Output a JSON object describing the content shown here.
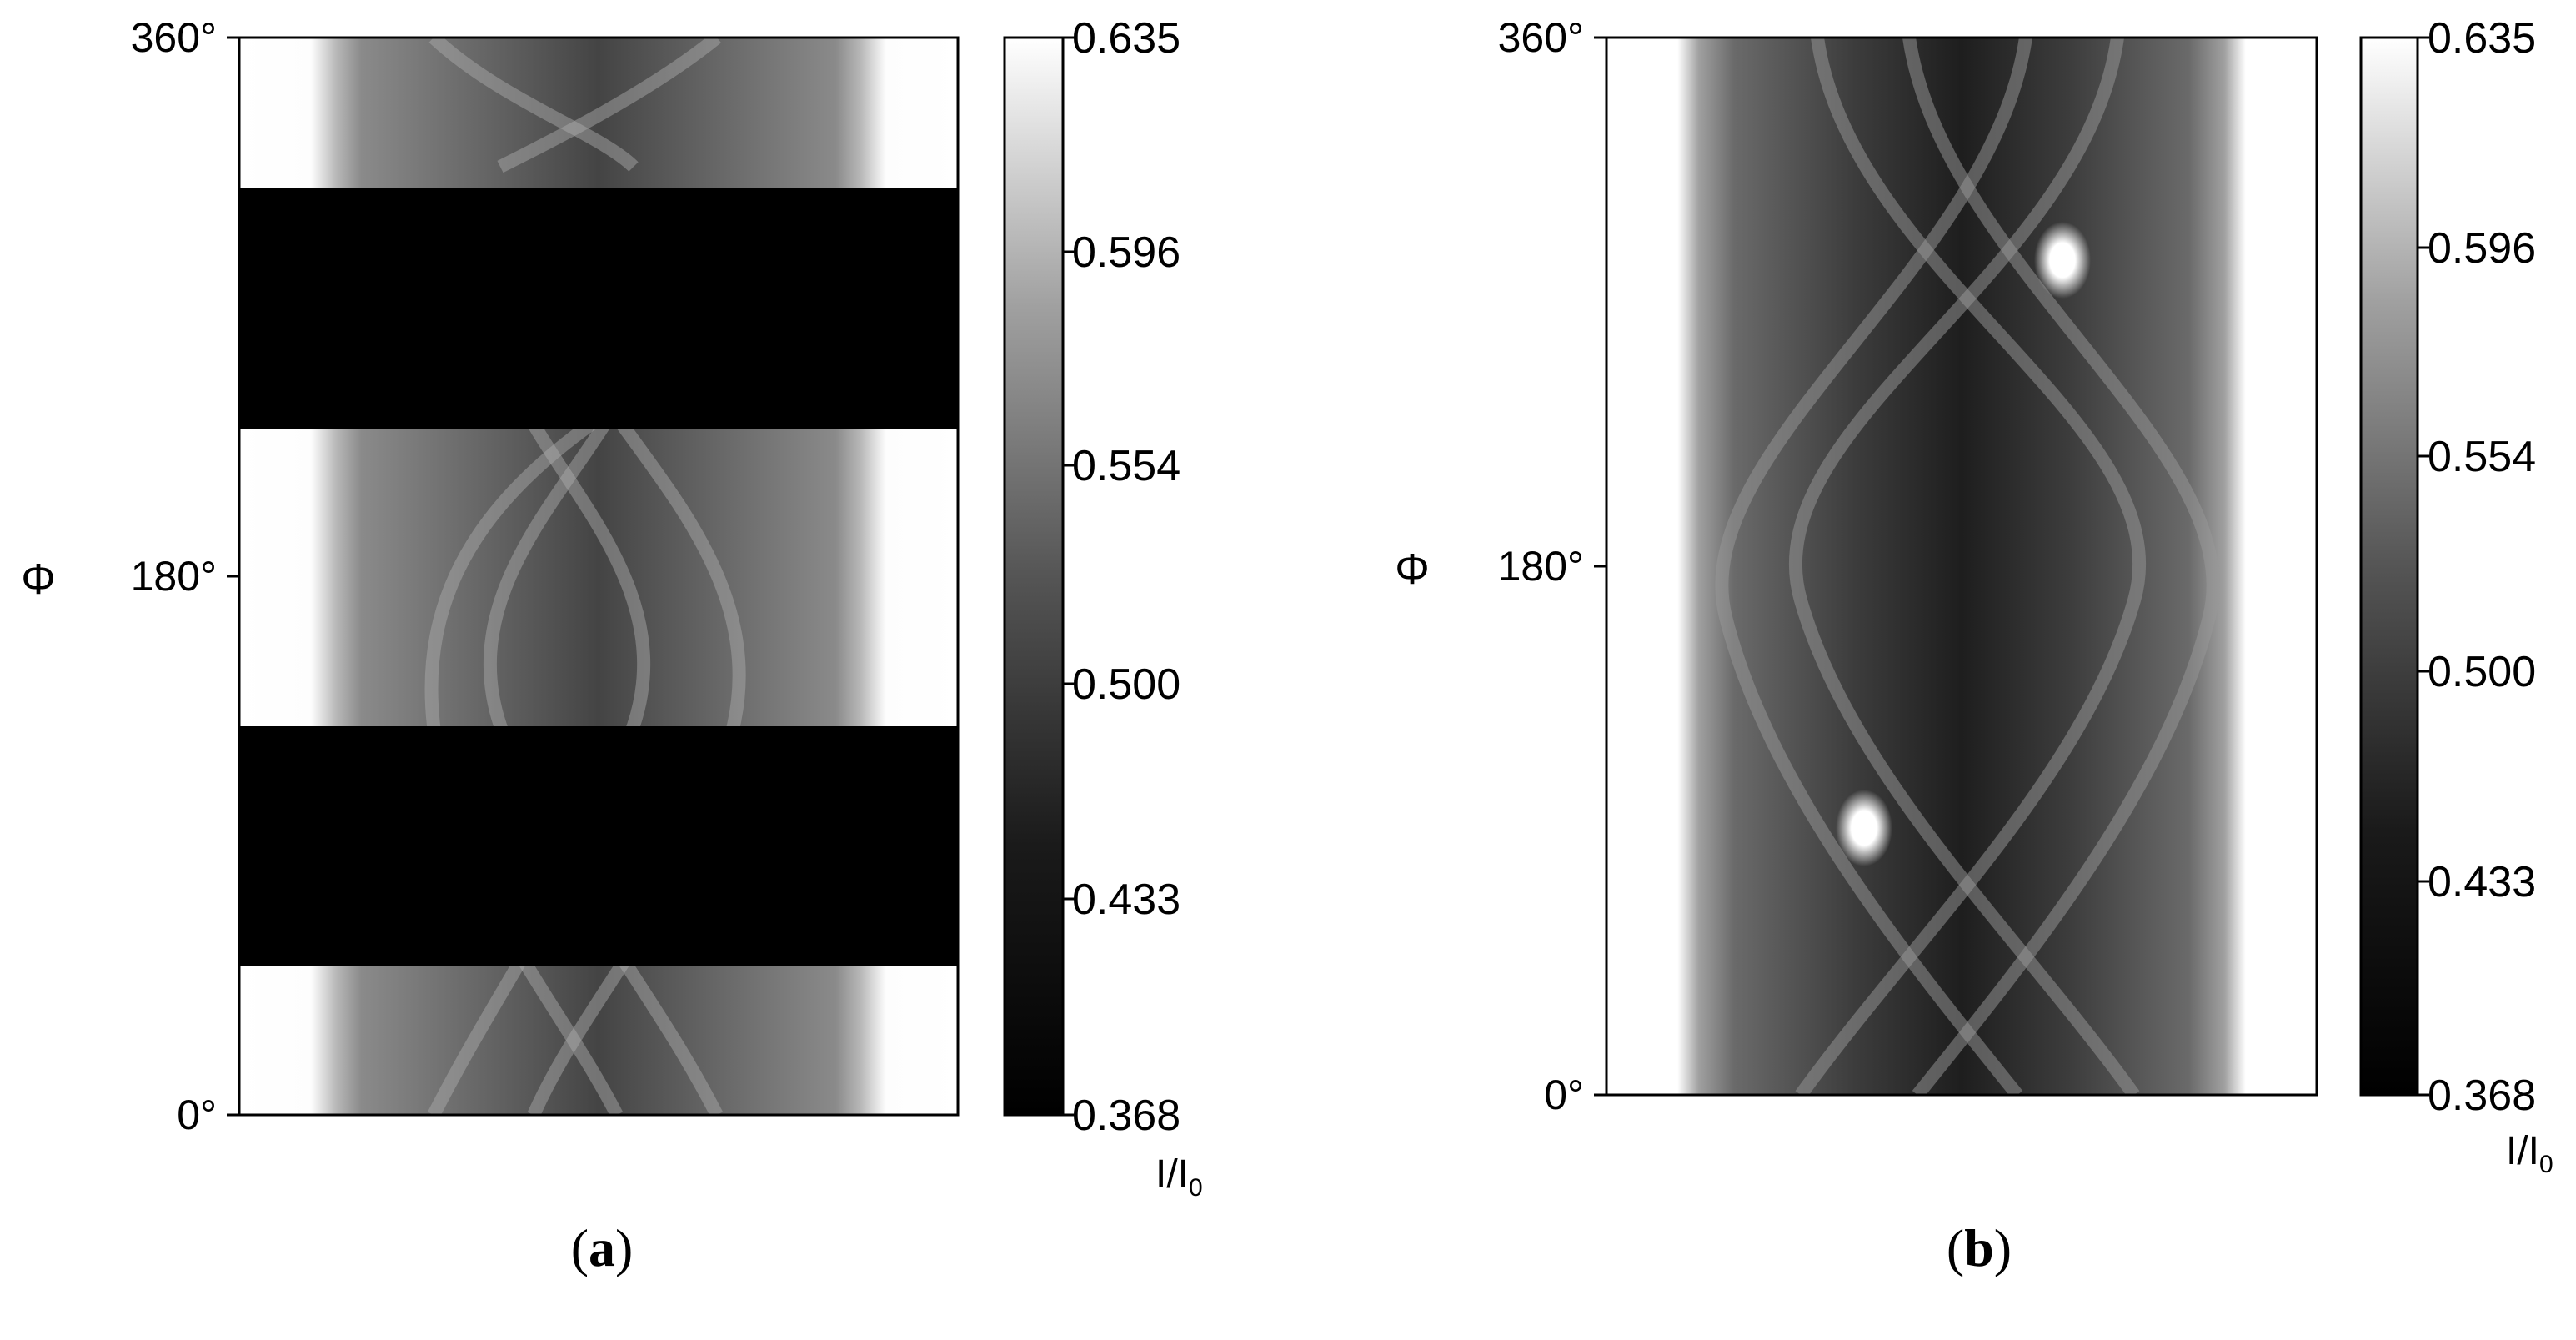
{
  "chart_data": [
    {
      "type": "heatmap",
      "panel_label": "a",
      "ylabel": "Φ",
      "y_ticks": [
        "0°",
        "180°",
        "360°"
      ],
      "ylim": [
        0,
        360
      ],
      "colorbar": {
        "ticks": [
          "0.368",
          "0.433",
          "0.500",
          "0.554",
          "0.596",
          "0.635"
        ],
        "range": [
          0.368,
          0.635
        ],
        "unit_main": "I/I",
        "unit_sub": "0"
      },
      "dark_bands_phi": [
        [
          50,
          130
        ],
        [
          230,
          310
        ]
      ],
      "background": "#ffffff",
      "colormap": "grayscale"
    },
    {
      "type": "heatmap",
      "panel_label": "b",
      "ylabel": "Φ",
      "y_ticks": [
        "0°",
        "180°",
        "360°"
      ],
      "ylim": [
        0,
        360
      ],
      "colorbar": {
        "ticks": [
          "0.368",
          "0.433",
          "0.500",
          "0.554",
          "0.596",
          "0.635"
        ],
        "range": [
          0.368,
          0.635
        ],
        "unit_main": "I/I",
        "unit_sub": "0"
      },
      "bright_spots_phi": [
        95,
        285
      ],
      "background": "#ffffff",
      "colormap": "grayscale"
    }
  ]
}
